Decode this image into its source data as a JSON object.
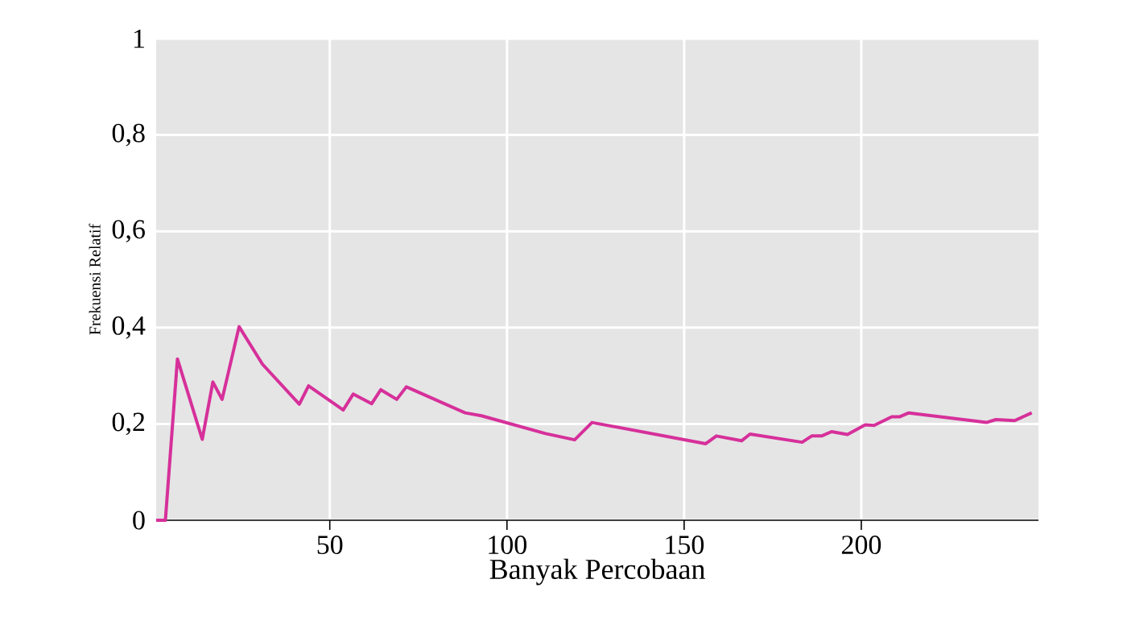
{
  "chart_data": {
    "type": "line",
    "xlabel": "Banyak Percobaan",
    "ylabel": "Frekuensi Relatif",
    "x": [
      1,
      3.6,
      7,
      14,
      17,
      19.6,
      24.4,
      31,
      41.4,
      44,
      53.8,
      56.6,
      61.8,
      64.4,
      68.9,
      71.6,
      88.2,
      92.8,
      110.9,
      119.1,
      124,
      156.1,
      159.1,
      166.2,
      168.6,
      183.3,
      186,
      188.8,
      191.6,
      196.1,
      201.1,
      203.6,
      208.6,
      210.9,
      213.4,
      235.3,
      238,
      243.3,
      248.1
    ],
    "values": [
      0,
      0,
      0.335,
      0.168,
      0.287,
      0.251,
      0.402,
      0.324,
      0.241,
      0.279,
      0.229,
      0.262,
      0.242,
      0.271,
      0.251,
      0.277,
      0.223,
      0.217,
      0.18,
      0.167,
      0.203,
      0.159,
      0.175,
      0.165,
      0.179,
      0.162,
      0.175,
      0.175,
      0.184,
      0.178,
      0.198,
      0.197,
      0.215,
      0.215,
      0.223,
      0.203,
      0.209,
      0.207,
      0.223
    ],
    "color": "#d6309a",
    "xlim": [
      1,
      250
    ],
    "ylim": [
      0,
      1
    ],
    "xticks": [
      50,
      100,
      150,
      200
    ],
    "yticks": [
      0,
      {
        "value": 0.2,
        "label": "0,2"
      },
      {
        "value": 0.4,
        "label": "0,4"
      },
      {
        "value": 0.6,
        "label": "0,6"
      },
      {
        "value": 0.8,
        "label": "0,8"
      },
      1
    ],
    "grid": true,
    "marker": "none",
    "line_style": "solid"
  }
}
